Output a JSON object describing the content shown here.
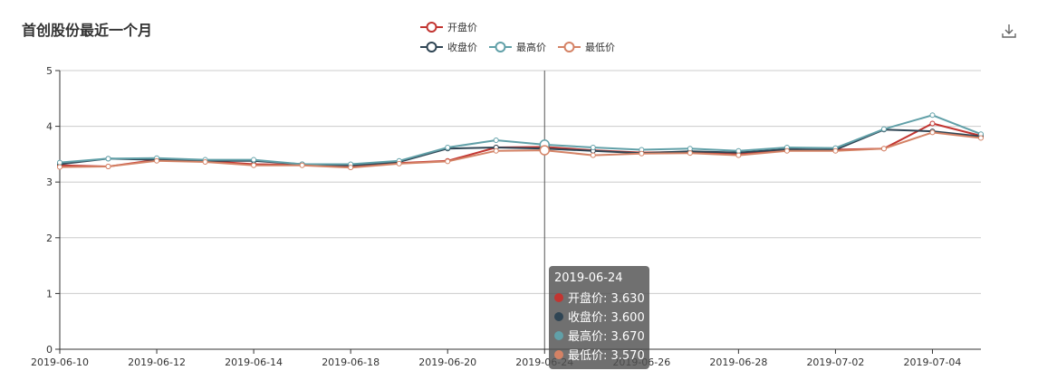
{
  "title": "首创股份最近一个月",
  "icons": {
    "download": "download-icon"
  },
  "chart_data": {
    "type": "line",
    "x": [
      "2019-06-10",
      "2019-06-11",
      "2019-06-12",
      "2019-06-13",
      "2019-06-14",
      "2019-06-17",
      "2019-06-18",
      "2019-06-19",
      "2019-06-20",
      "2019-06-21",
      "2019-06-24",
      "2019-06-25",
      "2019-06-26",
      "2019-06-27",
      "2019-06-28",
      "2019-07-01",
      "2019-07-02",
      "2019-07-03",
      "2019-07-04",
      "2019-07-05"
    ],
    "x_tick_labels": [
      "2019-06-10",
      "2019-06-12",
      "2019-06-14",
      "2019-06-18",
      "2019-06-20",
      "2019-06-24",
      "2019-06-26",
      "2019-06-28",
      "2019-07-02",
      "2019-07-04"
    ],
    "y_ticks": [
      0,
      1,
      2,
      3,
      4,
      5
    ],
    "ylim": [
      0,
      5
    ],
    "grid": true,
    "legend_placement": "top-center",
    "series": [
      {
        "name": "开盘价",
        "color": "#c23531",
        "values": [
          3.3,
          3.28,
          3.4,
          3.38,
          3.32,
          3.31,
          3.28,
          3.34,
          3.38,
          3.62,
          3.63,
          3.57,
          3.53,
          3.54,
          3.51,
          3.58,
          3.58,
          3.6,
          4.05,
          3.83
        ]
      },
      {
        "name": "收盘价",
        "color": "#2f4554",
        "values": [
          3.32,
          3.42,
          3.4,
          3.38,
          3.38,
          3.32,
          3.3,
          3.36,
          3.6,
          3.62,
          3.6,
          3.56,
          3.52,
          3.55,
          3.53,
          3.59,
          3.58,
          3.94,
          3.91,
          3.82
        ]
      },
      {
        "name": "最高价",
        "color": "#61a0a8",
        "values": [
          3.35,
          3.42,
          3.43,
          3.4,
          3.4,
          3.32,
          3.32,
          3.38,
          3.62,
          3.75,
          3.67,
          3.62,
          3.58,
          3.6,
          3.56,
          3.62,
          3.61,
          3.95,
          4.2,
          3.86
        ]
      },
      {
        "name": "最低价",
        "color": "#d48265",
        "values": [
          3.27,
          3.28,
          3.38,
          3.36,
          3.3,
          3.3,
          3.26,
          3.33,
          3.37,
          3.56,
          3.57,
          3.48,
          3.51,
          3.52,
          3.48,
          3.56,
          3.56,
          3.6,
          3.89,
          3.79
        ]
      }
    ],
    "highlight_index": 10,
    "tooltip": {
      "date": "2019-06-24",
      "rows": [
        {
          "label": "开盘价: 3.630",
          "color": "#c23531"
        },
        {
          "label": "收盘价: 3.600",
          "color": "#2f4554"
        },
        {
          "label": "最高价: 3.670",
          "color": "#61a0a8"
        },
        {
          "label": "最低价: 3.570",
          "color": "#d48265"
        }
      ]
    }
  }
}
